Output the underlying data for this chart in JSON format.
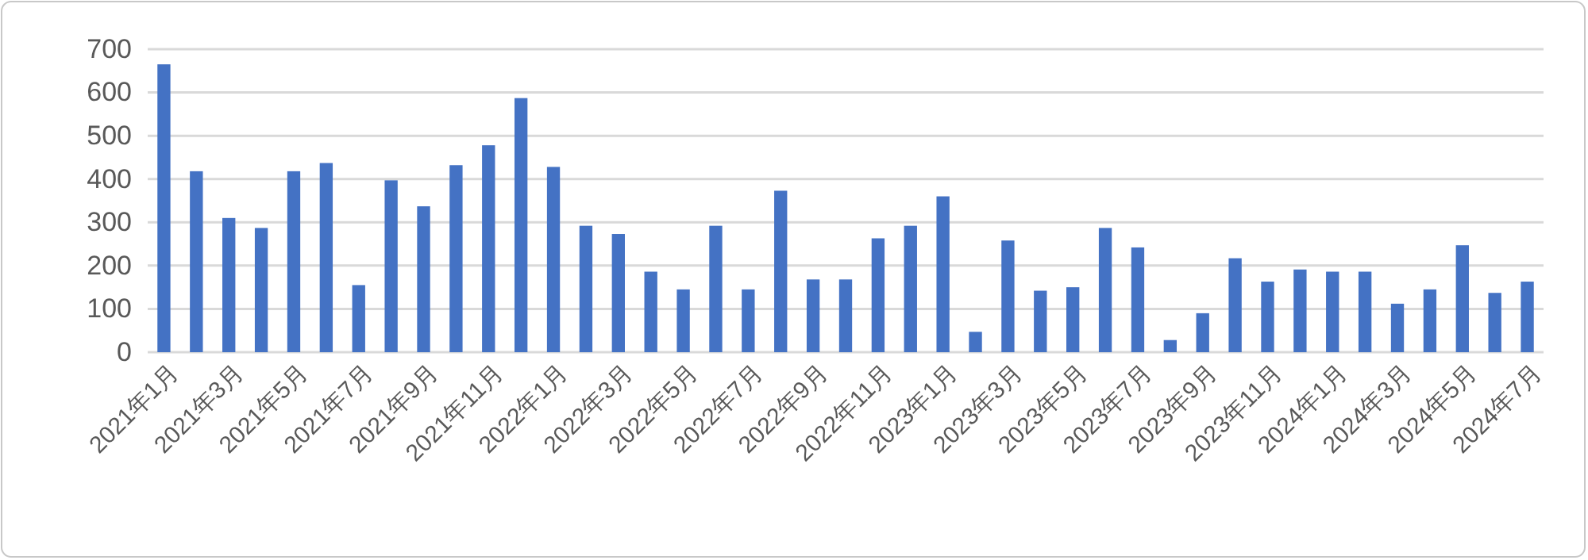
{
  "chart_data": {
    "type": "bar",
    "categories": [
      "2021年1月",
      null,
      "2021年3月",
      null,
      "2021年5月",
      null,
      "2021年7月",
      null,
      "2021年9月",
      null,
      "2021年11月",
      null,
      "2022年1月",
      null,
      "2022年3月",
      null,
      "2022年5月",
      null,
      "2022年7月",
      null,
      "2022年9月",
      null,
      "2022年11月",
      null,
      "2023年1月",
      null,
      "2023年3月",
      null,
      "2023年5月",
      null,
      "2023年7月",
      null,
      "2023年9月",
      null,
      "2023年11月",
      null,
      "2024年1月",
      null,
      "2024年3月",
      null,
      "2024年5月",
      null,
      "2024年7月"
    ],
    "values": [
      665,
      418,
      310,
      287,
      418,
      437,
      155,
      397,
      337,
      432,
      478,
      587,
      428,
      292,
      273,
      186,
      145,
      292,
      145,
      373,
      168,
      168,
      263,
      292,
      360,
      47,
      258,
      142,
      150,
      287,
      242,
      28,
      90,
      217,
      163,
      191,
      186,
      186,
      112,
      145,
      247,
      137,
      163
    ],
    "color": "#4472c4",
    "ylim": [
      0,
      700
    ],
    "yticks": [
      0,
      100,
      200,
      300,
      400,
      500,
      600,
      700
    ],
    "grid": "y"
  }
}
